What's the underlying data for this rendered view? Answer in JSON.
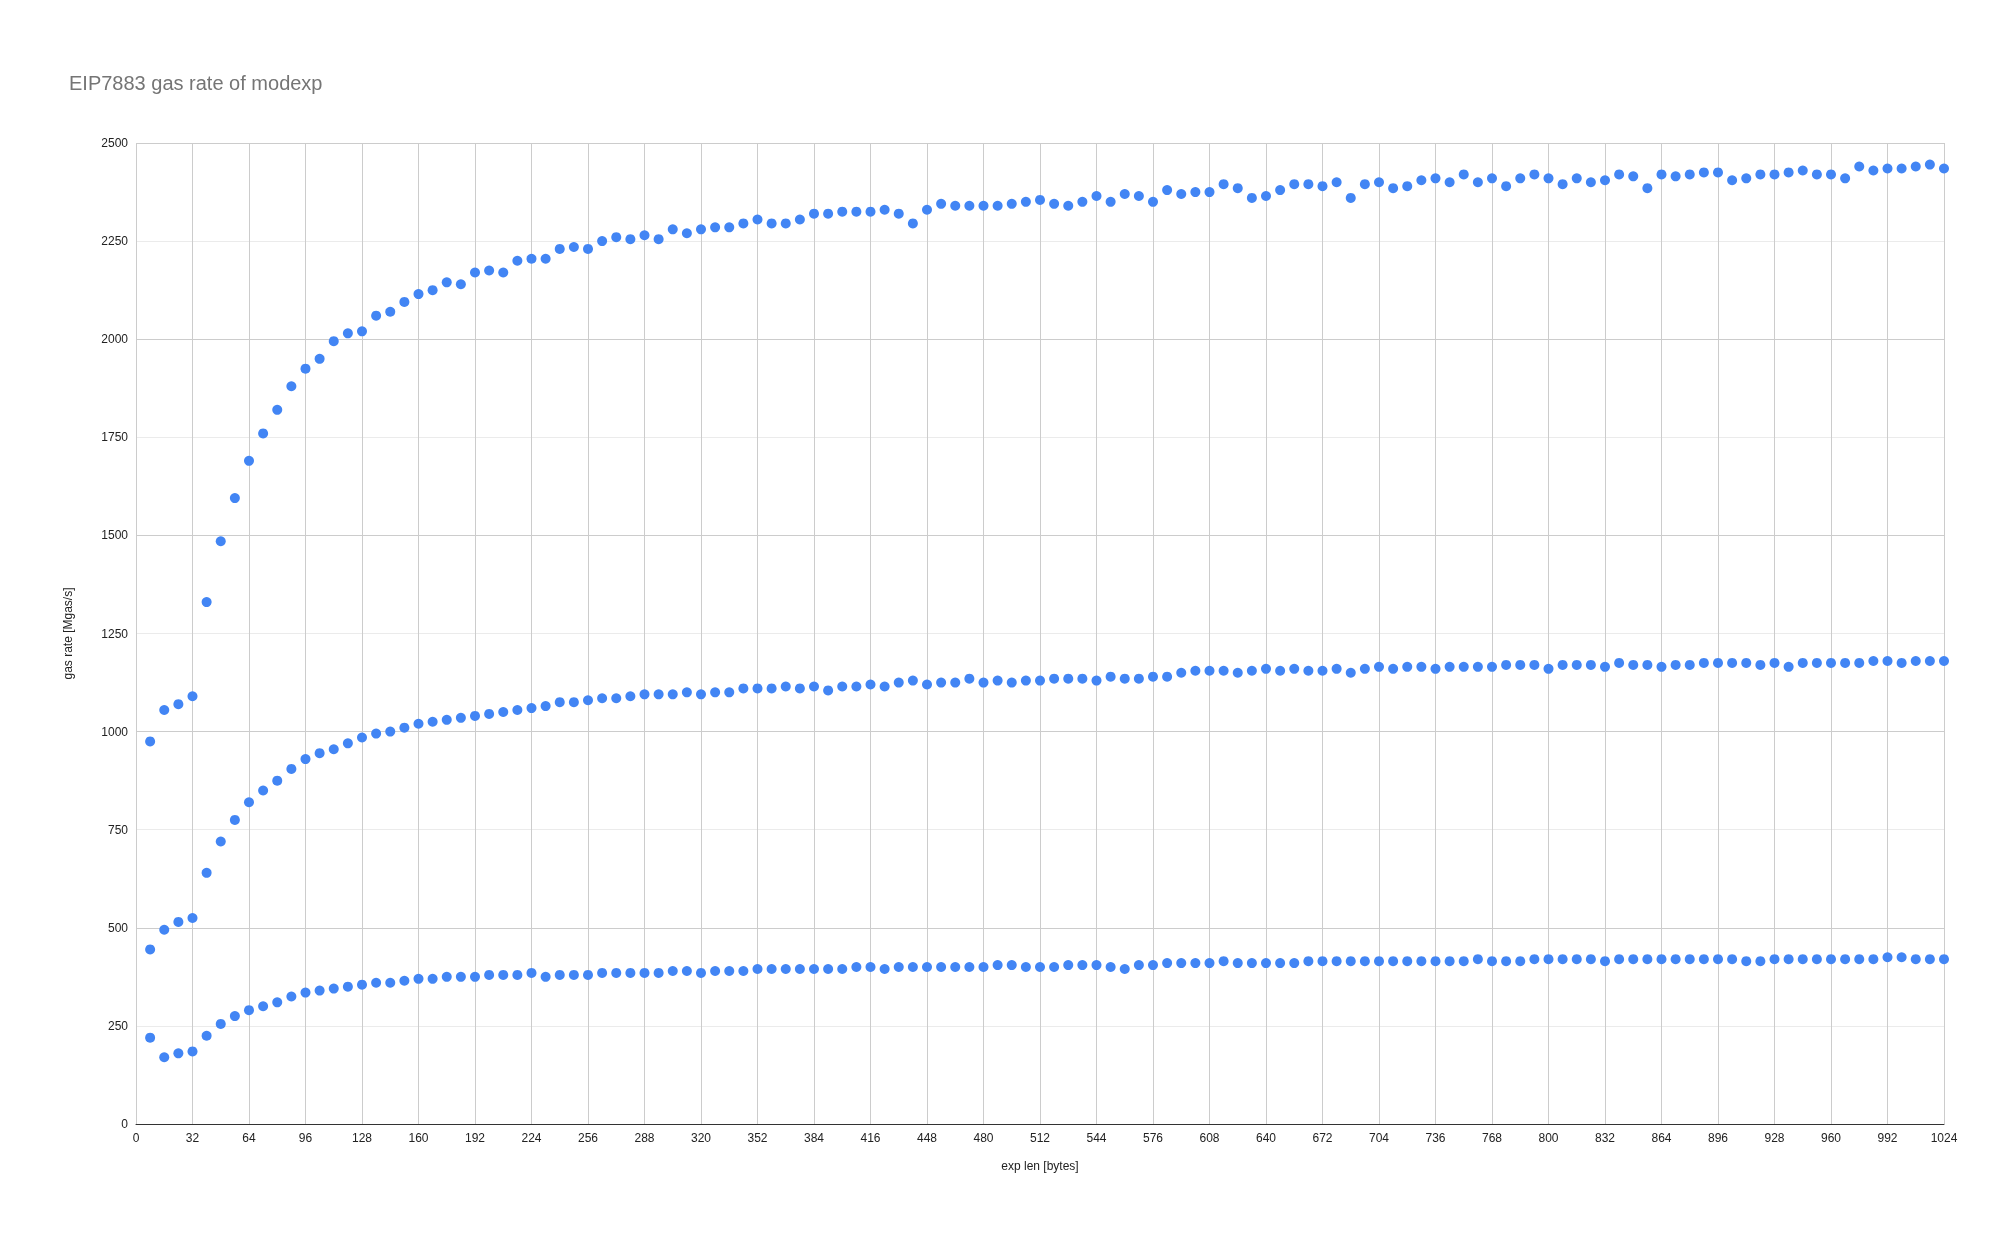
{
  "chart_data": {
    "type": "scatter",
    "title": "EIP7883 gas rate of modexp",
    "xlabel": "exp len [bytes]",
    "ylabel": "gas rate [Mgas/s]",
    "x": [
      8,
      16,
      24,
      32,
      40,
      48,
      56,
      64,
      72,
      80,
      88,
      96,
      104,
      112,
      120,
      128,
      136,
      144,
      152,
      160,
      168,
      176,
      184,
      192,
      200,
      208,
      216,
      224,
      232,
      240,
      248,
      256,
      264,
      272,
      280,
      288,
      296,
      304,
      312,
      320,
      328,
      336,
      344,
      352,
      360,
      368,
      376,
      384,
      392,
      400,
      408,
      416,
      424,
      432,
      440,
      448,
      456,
      464,
      472,
      480,
      488,
      496,
      504,
      512,
      520,
      528,
      536,
      544,
      552,
      560,
      568,
      576,
      584,
      592,
      600,
      608,
      616,
      624,
      632,
      640,
      648,
      656,
      664,
      672,
      680,
      688,
      696,
      704,
      712,
      720,
      728,
      736,
      744,
      752,
      760,
      768,
      776,
      784,
      792,
      800,
      808,
      816,
      824,
      832,
      840,
      848,
      856,
      864,
      872,
      880,
      888,
      896,
      904,
      912,
      920,
      928,
      936,
      944,
      952,
      960,
      968,
      976,
      984,
      992,
      1000,
      1008,
      1016,
      1024
    ],
    "series": [
      {
        "color": "#4285f4",
        "values": [
          975,
          1055,
          1070,
          1090,
          1330,
          1485,
          1595,
          1690,
          1760,
          1820,
          1880,
          1925,
          1950,
          1995,
          2015,
          2020,
          2060,
          2070,
          2095,
          2115,
          2125,
          2145,
          2140,
          2170,
          2175,
          2170,
          2200,
          2205,
          2205,
          2230,
          2235,
          2230,
          2250,
          2260,
          2255,
          2265,
          2255,
          2280,
          2270,
          2280,
          2285,
          2285,
          2295,
          2305,
          2295,
          2295,
          2305,
          2320,
          2320,
          2325,
          2325,
          2325,
          2330,
          2320,
          2295,
          2330,
          2345,
          2340,
          2340,
          2340,
          2340,
          2345,
          2350,
          2355,
          2345,
          2340,
          2350,
          2365,
          2350,
          2370,
          2365,
          2350,
          2380,
          2370,
          2375,
          2375,
          2395,
          2385,
          2360,
          2365,
          2380,
          2395,
          2395,
          2390,
          2400,
          2360,
          2395,
          2400,
          2385,
          2390,
          2405,
          2410,
          2400,
          2420,
          2400,
          2410,
          2390,
          2410,
          2420,
          2410,
          2395,
          2410,
          2400,
          2405,
          2420,
          2415,
          2385,
          2420,
          2415,
          2420,
          2425,
          2425,
          2405,
          2410,
          2420,
          2420,
          2425,
          2430,
          2420,
          2420,
          2410,
          2440,
          2430,
          2435,
          2435,
          2440,
          2445,
          2435
        ]
      },
      {
        "color": "#4285f4",
        "values": [
          445,
          495,
          515,
          525,
          640,
          720,
          775,
          820,
          850,
          875,
          905,
          930,
          945,
          955,
          970,
          985,
          995,
          1000,
          1010,
          1020,
          1025,
          1030,
          1035,
          1040,
          1045,
          1050,
          1055,
          1060,
          1065,
          1075,
          1075,
          1080,
          1085,
          1085,
          1090,
          1095,
          1095,
          1095,
          1100,
          1095,
          1100,
          1100,
          1110,
          1110,
          1110,
          1115,
          1110,
          1115,
          1105,
          1115,
          1115,
          1120,
          1115,
          1125,
          1130,
          1120,
          1125,
          1125,
          1135,
          1125,
          1130,
          1125,
          1130,
          1130,
          1135,
          1135,
          1135,
          1130,
          1140,
          1135,
          1135,
          1140,
          1140,
          1150,
          1155,
          1155,
          1155,
          1150,
          1155,
          1160,
          1155,
          1160,
          1155,
          1155,
          1160,
          1150,
          1160,
          1165,
          1160,
          1165,
          1165,
          1160,
          1165,
          1165,
          1165,
          1165,
          1170,
          1170,
          1170,
          1160,
          1170,
          1170,
          1170,
          1165,
          1175,
          1170,
          1170,
          1165,
          1170,
          1170,
          1175,
          1175,
          1175,
          1175,
          1170,
          1175,
          1165,
          1175,
          1175,
          1175,
          1175,
          1175,
          1180,
          1180,
          1175,
          1180,
          1180,
          1180
        ]
      },
      {
        "color": "#4285f4",
        "values": [
          220,
          170,
          180,
          185,
          225,
          255,
          275,
          290,
          300,
          310,
          325,
          335,
          340,
          345,
          350,
          355,
          360,
          360,
          365,
          370,
          370,
          375,
          375,
          375,
          380,
          380,
          380,
          385,
          375,
          380,
          380,
          380,
          385,
          385,
          385,
          385,
          385,
          390,
          390,
          385,
          390,
          390,
          390,
          395,
          395,
          395,
          395,
          395,
          395,
          395,
          400,
          400,
          395,
          400,
          400,
          400,
          400,
          400,
          400,
          400,
          405,
          405,
          400,
          400,
          400,
          405,
          405,
          405,
          400,
          395,
          405,
          405,
          410,
          410,
          410,
          410,
          415,
          410,
          410,
          410,
          410,
          410,
          415,
          415,
          415,
          415,
          415,
          415,
          415,
          415,
          415,
          415,
          415,
          415,
          420,
          415,
          415,
          415,
          420,
          420,
          420,
          420,
          420,
          415,
          420,
          420,
          420,
          420,
          420,
          420,
          420,
          420,
          420,
          415,
          415,
          420,
          420,
          420,
          420,
          420,
          420,
          420,
          420,
          425,
          425,
          420,
          420,
          420
        ]
      }
    ],
    "xlim": [
      0,
      1024
    ],
    "xticks": [
      0,
      32,
      64,
      96,
      128,
      160,
      192,
      224,
      256,
      288,
      320,
      352,
      384,
      416,
      448,
      480,
      512,
      544,
      576,
      608,
      640,
      672,
      704,
      736,
      768,
      800,
      832,
      864,
      896,
      928,
      960,
      992,
      1024
    ],
    "ylim": [
      0,
      2500
    ],
    "yticks": [
      0,
      250,
      500,
      750,
      1000,
      1250,
      1500,
      1750,
      2000,
      2250,
      2500
    ],
    "grid": true,
    "legend": false,
    "marker": "circle"
  }
}
